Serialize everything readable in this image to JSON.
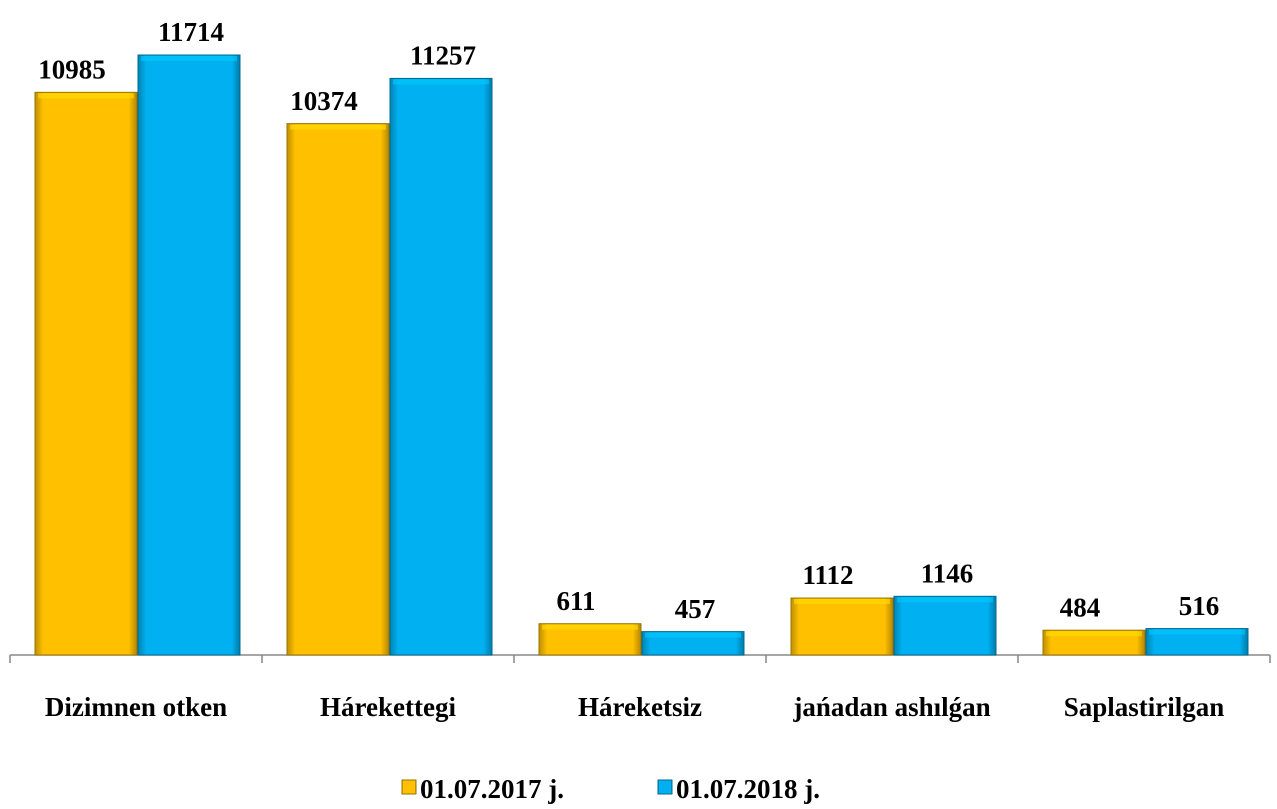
{
  "chart_data": {
    "type": "bar",
    "categories": [
      "Dizimnen otken",
      "Hárekettegi",
      "Háreketsiz",
      "jańadan ashılǵan",
      "Saplastirilgan"
    ],
    "series": [
      {
        "name": "01.07.2017 j.",
        "color": "#ffc000",
        "values": [
          10985,
          10374,
          611,
          1112,
          484
        ]
      },
      {
        "name": "01.07.2018 j.",
        "color": "#00b0f0",
        "values": [
          11714,
          11257,
          457,
          1146,
          516
        ]
      }
    ]
  }
}
